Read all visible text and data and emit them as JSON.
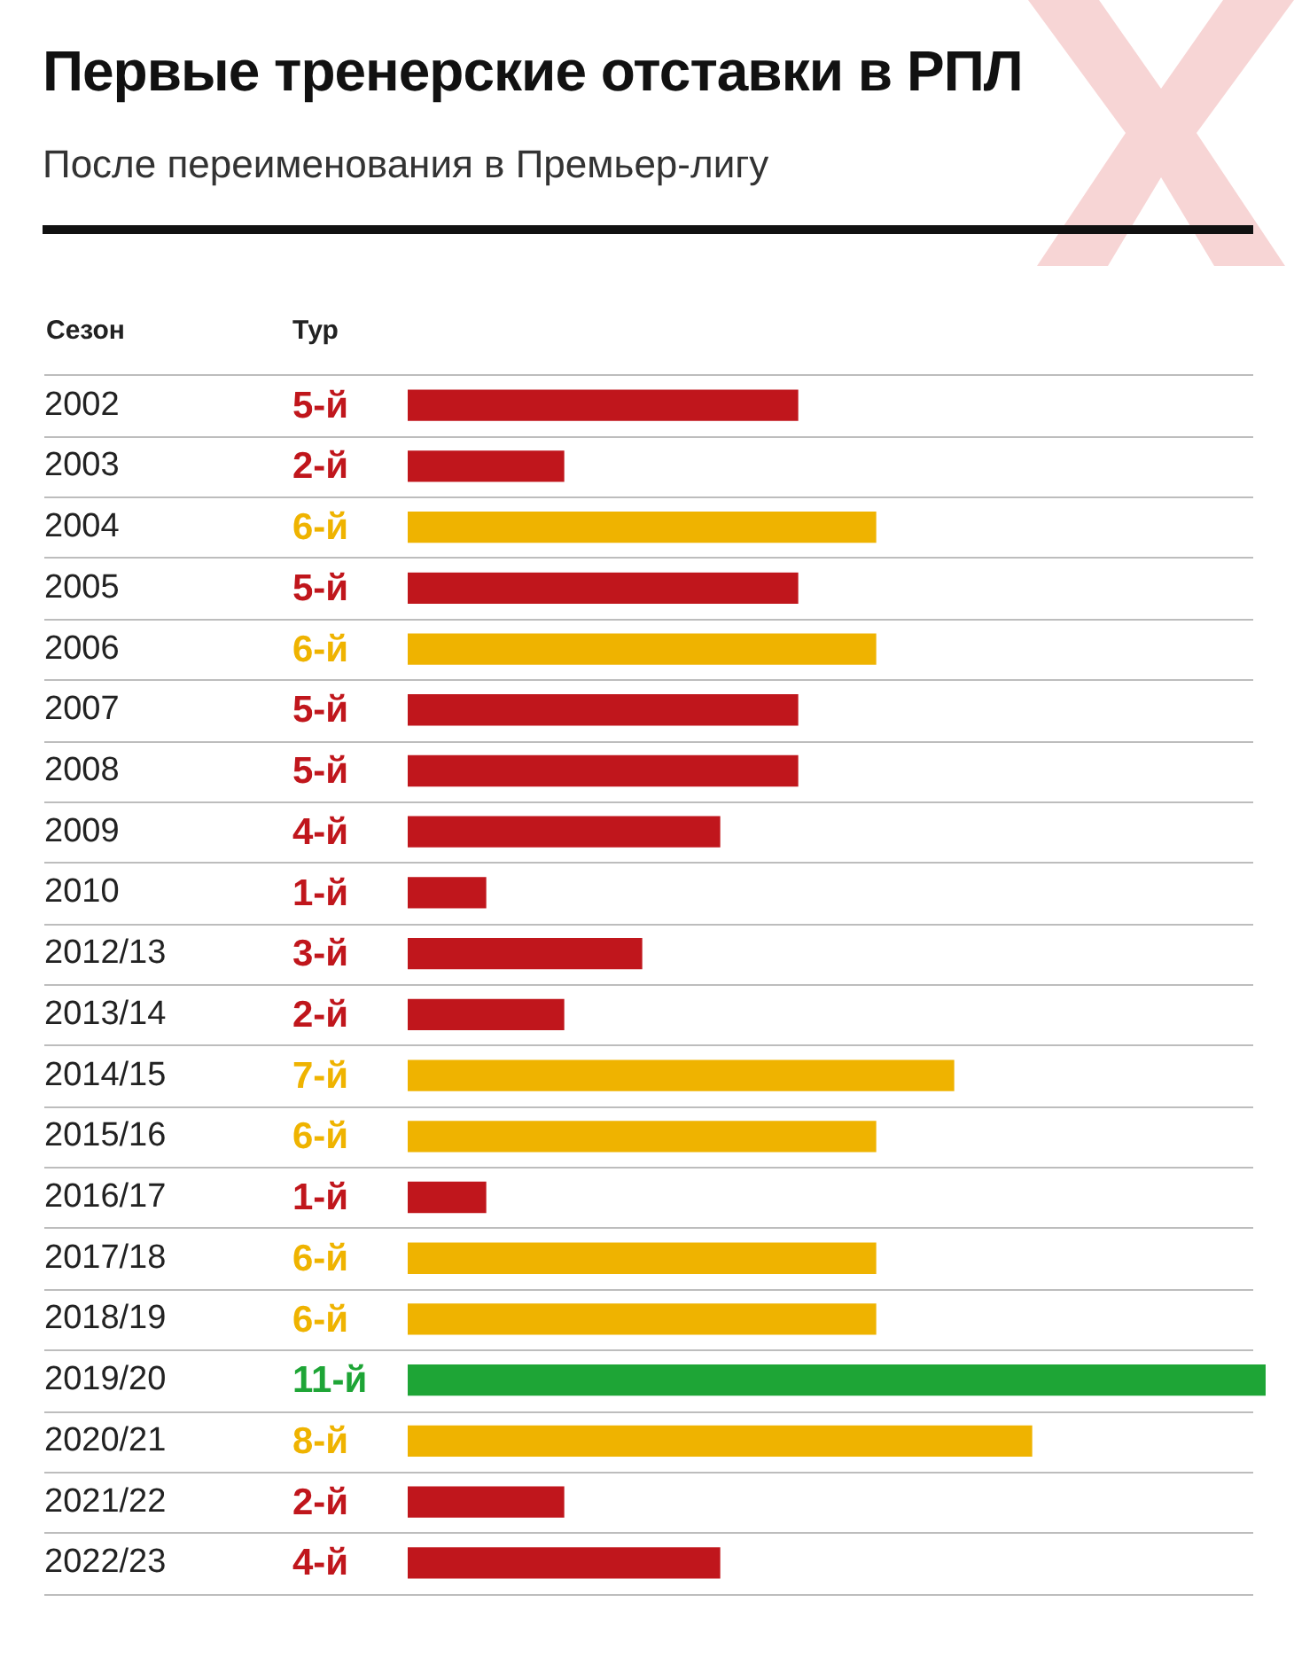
{
  "chart_data": {
    "type": "bar",
    "orientation": "horizontal",
    "title": "Первые тренерские отставки в РПЛ",
    "subtitle": "После переименования в Премьер-лигу",
    "annotations": [
      "Сезон",
      "Тур"
    ],
    "categories": [
      "2002",
      "2003",
      "2004",
      "2005",
      "2006",
      "2007",
      "2008",
      "2009",
      "2010",
      "2012/13",
      "2013/14",
      "2014/15",
      "2015/16",
      "2016/17",
      "2017/18",
      "2018/19",
      "2019/20",
      "2020/21",
      "2021/22",
      "2022/23"
    ],
    "values": [
      5,
      2,
      6,
      5,
      6,
      5,
      5,
      4,
      1,
      3,
      2,
      7,
      6,
      1,
      6,
      6,
      11,
      8,
      2,
      4
    ],
    "value_labels": [
      "5-й",
      "2-й",
      "6-й",
      "5-й",
      "6-й",
      "5-й",
      "5-й",
      "4-й",
      "1-й",
      "3-й",
      "2-й",
      "7-й",
      "6-й",
      "1-й",
      "6-й",
      "6-й",
      "11-й",
      "8-й",
      "2-й",
      "4-й"
    ],
    "colors": [
      "#c0161c",
      "#c0161c",
      "#efb300",
      "#c0161c",
      "#efb300",
      "#c0161c",
      "#c0161c",
      "#c0161c",
      "#c0161c",
      "#c0161c",
      "#c0161c",
      "#efb300",
      "#efb300",
      "#c0161c",
      "#efb300",
      "#efb300",
      "#1ea536",
      "#efb300",
      "#c0161c",
      "#c0161c"
    ],
    "xlim": [
      0,
      11
    ],
    "tick_labels": "y",
    "grid": "y",
    "legend": false
  }
}
